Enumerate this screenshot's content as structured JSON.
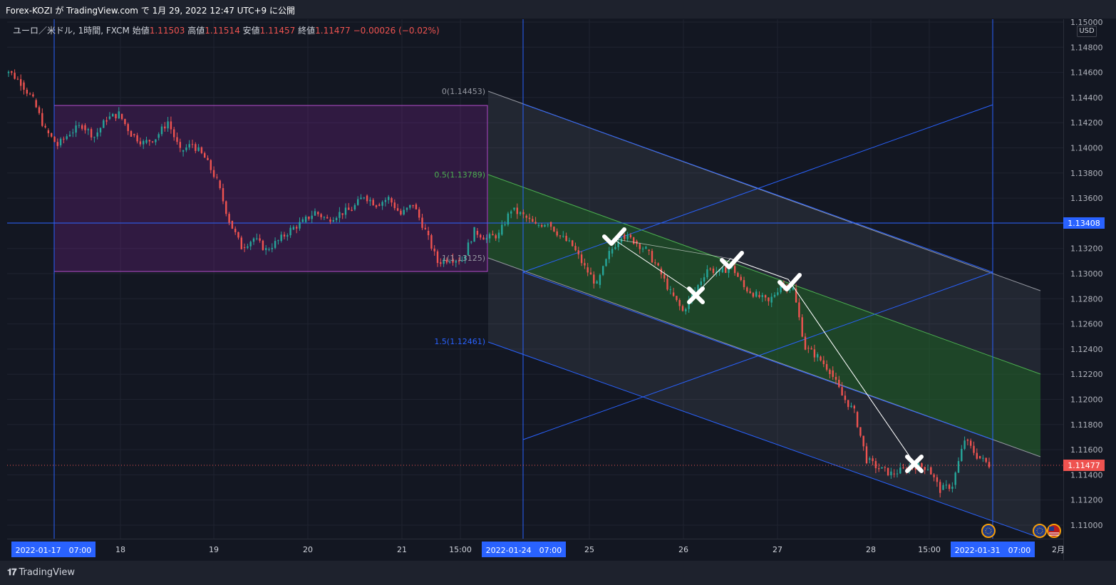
{
  "header": {
    "publisher_text": "Forex-KOZI が TradingView.com で 1月 29, 2022 12:47 UTC+9 に公開"
  },
  "legend": {
    "symbol": "ユーロ／米ドル, 1時間, FXCM",
    "open_label": "始値",
    "open": "1.11503",
    "high_label": "高値",
    "high": "1.11514",
    "low_label": "安値",
    "low": "1.11457",
    "close_label": "終値",
    "close": "1.11477",
    "change": "−0.00026 (−0.02%)"
  },
  "price_axis": {
    "currency": "USD",
    "ticks": [
      "1.15000",
      "1.14800",
      "1.14600",
      "1.14400",
      "1.14200",
      "1.14000",
      "1.13800",
      "1.13600",
      "1.13400",
      "1.13200",
      "1.13000",
      "1.12800",
      "1.12600",
      "1.12400",
      "1.12200",
      "1.12000",
      "1.11800",
      "1.11600",
      "1.11400",
      "1.11200",
      "1.11000"
    ],
    "highlight_line_label": "1.13408",
    "last_price_label": "1.11477"
  },
  "time_axis": {
    "labels": [
      "18",
      "19",
      "20",
      "21",
      "15:00",
      "25",
      "26",
      "27",
      "28",
      "15:00",
      "2月"
    ],
    "highlight_labels": [
      "2022-01-17　07:00",
      "2022-01-24　07:00",
      "2022-01-31　07:00"
    ]
  },
  "fib_labels": {
    "level_0": "0(1.14453)",
    "level_05": "0.5(1.13789)",
    "level_1": "1(1.13125)",
    "level_15": "1.5(1.12461)"
  },
  "footer": {
    "brand": "TradingView"
  },
  "colors": {
    "background": "#131722",
    "up": "#26a69a",
    "down": "#ef5350",
    "accent_blue": "#2962ff",
    "box_purple": "#9c27b0",
    "channel_green": "#4caf50"
  },
  "chart_data": {
    "type": "candlestick",
    "symbol": "EUR/USD",
    "interval": "1時間",
    "ylim": [
      1.109,
      1.1502
    ],
    "x": [
      "18",
      "19",
      "20",
      "21",
      "15:00",
      "25",
      "26",
      "27",
      "28",
      "15:00",
      "2月"
    ],
    "close_series": [
      1.1461,
      1.1452,
      1.1438,
      1.1414,
      1.1402,
      1.1412,
      1.1418,
      1.1409,
      1.1423,
      1.1427,
      1.1411,
      1.1404,
      1.1408,
      1.1421,
      1.1397,
      1.1403,
      1.1392,
      1.1374,
      1.1342,
      1.1321,
      1.1328,
      1.1319,
      1.1326,
      1.1335,
      1.1341,
      1.1349,
      1.1343,
      1.1348,
      1.1351,
      1.1362,
      1.1355,
      1.136,
      1.1347,
      1.1355,
      1.1334,
      1.1309,
      1.1312,
      1.1311,
      1.1334,
      1.1328,
      1.1331,
      1.1351,
      1.1346,
      1.1338,
      1.1341,
      1.133,
      1.1322,
      1.1305,
      1.1291,
      1.1316,
      1.1331,
      1.1326,
      1.1319,
      1.1304,
      1.1285,
      1.127,
      1.1286,
      1.1304,
      1.1301,
      1.1306,
      1.1289,
      1.1283,
      1.1277,
      1.1291,
      1.1288,
      1.1241,
      1.1234,
      1.1223,
      1.1203,
      1.119,
      1.1152,
      1.1145,
      1.1141,
      1.1144,
      1.1147,
      1.1146,
      1.1128,
      1.1132,
      1.1168,
      1.1155,
      1.1148
    ],
    "levels": {
      "horizontal_line": 1.13408,
      "last_price": 1.11477
    },
    "fib_levels": [
      {
        "label": "0",
        "value": 1.14453
      },
      {
        "label": "0.5",
        "value": 1.13789
      },
      {
        "label": "1",
        "value": 1.13125
      },
      {
        "label": "1.5",
        "value": 1.12461
      }
    ]
  }
}
